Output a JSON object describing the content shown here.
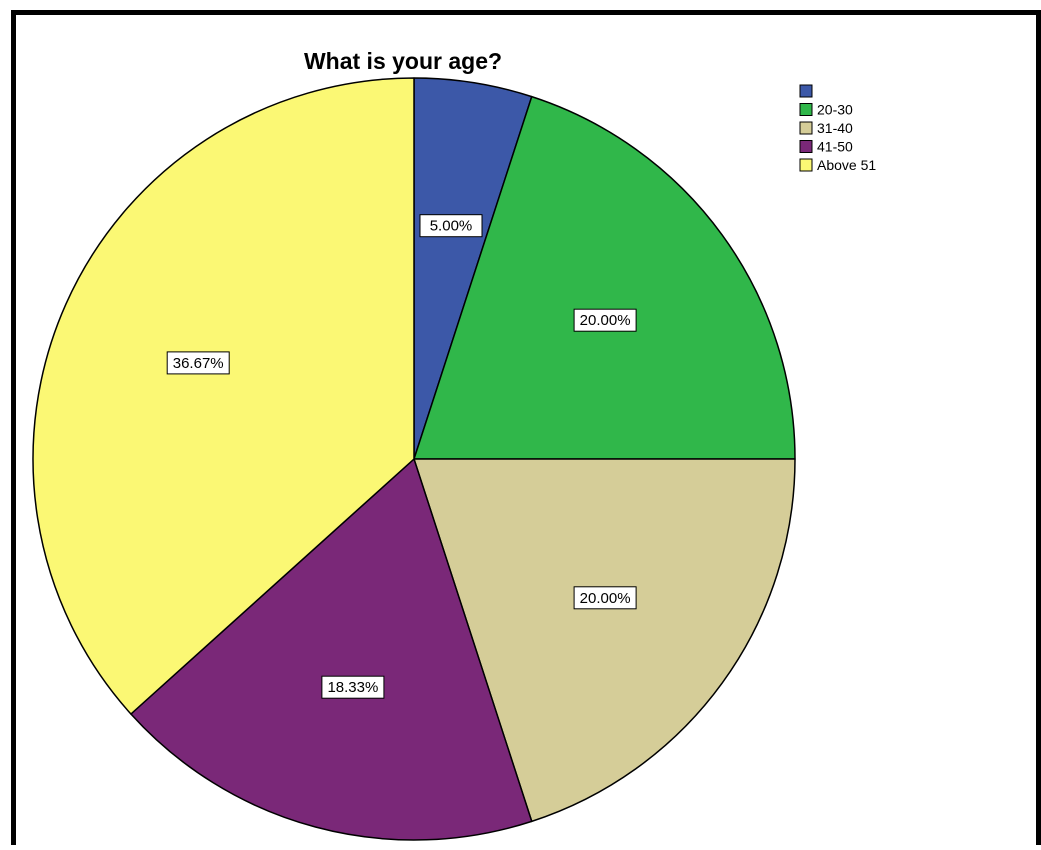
{
  "chart_data": {
    "type": "pie",
    "title": "What is your age?",
    "slices": [
      {
        "label": "",
        "value": 5.0,
        "display": "5.00%",
        "color": "#3c58a8"
      },
      {
        "label": "20-30",
        "value": 20.0,
        "display": "20.00%",
        "color": "#30b74a"
      },
      {
        "label": "31-40",
        "value": 20.0,
        "display": "20.00%",
        "color": "#d5cd98"
      },
      {
        "label": "41-50",
        "value": 18.33,
        "display": "18.33%",
        "color": "#7a2878"
      },
      {
        "label": "Above 51",
        "value": 36.67,
        "display": "36.67%",
        "color": "#fbf874"
      }
    ],
    "start_angle": "12 o'clock",
    "direction": "clockwise",
    "legend_position": "top-right"
  }
}
